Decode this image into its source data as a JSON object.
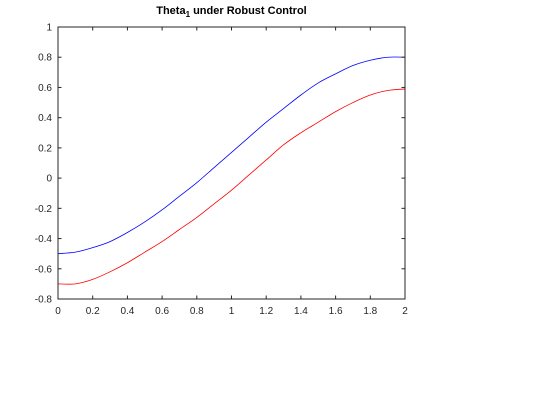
{
  "chart_data": {
    "type": "line",
    "title": {
      "main": "Theta",
      "subscript": "1",
      "rest": " under Robust Control"
    },
    "xlabel": "",
    "ylabel": "",
    "xlim": [
      0,
      2
    ],
    "ylim": [
      -0.8,
      1
    ],
    "x_ticks": [
      0,
      0.2,
      0.4,
      0.6,
      0.8,
      1,
      1.2,
      1.4,
      1.6,
      1.8,
      2
    ],
    "x_tick_labels": [
      "0",
      "0.2",
      "0.4",
      "0.6",
      "0.8",
      "1",
      "1.2",
      "1.4",
      "1.6",
      "1.8",
      "2"
    ],
    "y_ticks": [
      -0.8,
      -0.6,
      -0.4,
      -0.2,
      0,
      0.2,
      0.4,
      0.6,
      0.8,
      1
    ],
    "y_tick_labels": [
      "-0.8",
      "-0.6",
      "-0.4",
      "-0.2",
      "0",
      "0.2",
      "0.4",
      "0.6",
      "0.8",
      "1"
    ],
    "grid": false,
    "box": true,
    "x": [
      0,
      0.1,
      0.2,
      0.3,
      0.4,
      0.5,
      0.6,
      0.7,
      0.8,
      0.9,
      1.0,
      1.1,
      1.2,
      1.3,
      1.4,
      1.5,
      1.6,
      1.7,
      1.8,
      1.9,
      2.0
    ],
    "series": [
      {
        "color": "#0000ff",
        "values": [
          -0.5,
          -0.49,
          -0.46,
          -0.42,
          -0.36,
          -0.29,
          -0.21,
          -0.12,
          -0.03,
          0.07,
          0.17,
          0.27,
          0.37,
          0.46,
          0.55,
          0.63,
          0.69,
          0.745,
          0.78,
          0.8,
          0.8
        ]
      },
      {
        "color": "#ff0000",
        "values": [
          -0.7,
          -0.7,
          -0.67,
          -0.62,
          -0.56,
          -0.49,
          -0.42,
          -0.34,
          -0.26,
          -0.17,
          -0.08,
          0.02,
          0.12,
          0.22,
          0.3,
          0.37,
          0.44,
          0.5,
          0.55,
          0.58,
          0.59
        ]
      }
    ]
  }
}
